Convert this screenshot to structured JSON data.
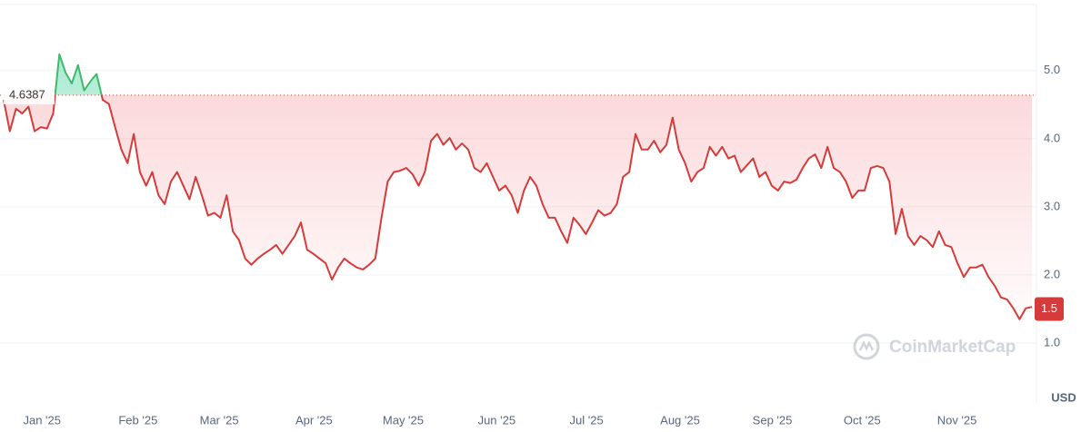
{
  "chart_data": {
    "type": "line",
    "series": [
      {
        "name": "Price",
        "color": "#d63b3b",
        "up_color": "#3fb96a",
        "values": [
          4.57,
          4.11,
          4.44,
          4.37,
          4.47,
          4.11,
          4.17,
          4.15,
          4.37,
          5.24,
          4.97,
          4.81,
          5.08,
          4.71,
          4.84,
          4.95,
          4.57,
          4.51,
          4.17,
          3.84,
          3.64,
          4.07,
          3.51,
          3.31,
          3.51,
          3.17,
          3.04,
          3.37,
          3.51,
          3.31,
          3.11,
          3.44,
          3.17,
          2.87,
          2.91,
          2.84,
          3.17,
          2.64,
          2.51,
          2.24,
          2.15,
          2.24,
          2.31,
          2.37,
          2.44,
          2.31,
          2.44,
          2.57,
          2.77,
          2.37,
          2.31,
          2.24,
          2.17,
          1.93,
          2.11,
          2.24,
          2.17,
          2.11,
          2.08,
          2.15,
          2.24,
          2.84,
          3.37,
          3.51,
          3.53,
          3.57,
          3.48,
          3.31,
          3.51,
          3.97,
          4.07,
          3.91,
          4.01,
          3.84,
          3.93,
          3.84,
          3.57,
          3.51,
          3.64,
          3.44,
          3.24,
          3.31,
          3.17,
          2.91,
          3.24,
          3.44,
          3.31,
          3.04,
          2.84,
          2.84,
          2.64,
          2.47,
          2.84,
          2.73,
          2.6,
          2.77,
          2.95,
          2.87,
          2.91,
          3.04,
          3.44,
          3.51,
          4.07,
          3.84,
          3.84,
          3.97,
          3.8,
          3.91,
          4.31,
          3.84,
          3.64,
          3.37,
          3.51,
          3.57,
          3.88,
          3.75,
          3.88,
          3.71,
          3.75,
          3.51,
          3.61,
          3.71,
          3.44,
          3.51,
          3.31,
          3.24,
          3.37,
          3.35,
          3.4,
          3.57,
          3.71,
          3.77,
          3.57,
          3.88,
          3.57,
          3.51,
          3.37,
          3.13,
          3.24,
          3.24,
          3.57,
          3.6,
          3.57,
          3.37,
          2.6,
          2.97,
          2.57,
          2.44,
          2.57,
          2.51,
          2.41,
          2.64,
          2.44,
          2.41,
          2.17,
          1.97,
          2.11,
          2.11,
          2.15,
          1.97,
          1.84,
          1.67,
          1.64,
          1.51,
          1.35,
          1.51,
          1.53
        ]
      }
    ],
    "xlim": [
      0,
      166
    ],
    "xticks": [
      {
        "value": 6.2,
        "label": "Jan '25"
      },
      {
        "value": 21.7,
        "label": "Feb '25"
      },
      {
        "value": 34.8,
        "label": "Mar '25"
      },
      {
        "value": 50.1,
        "label": "Apr '25"
      },
      {
        "value": 64.5,
        "label": "May '25"
      },
      {
        "value": 79.6,
        "label": "Jun '25"
      },
      {
        "value": 94.1,
        "label": "Jul '25"
      },
      {
        "value": 109.2,
        "label": "Aug '25"
      },
      {
        "value": 124.1,
        "label": "Sep '25"
      },
      {
        "value": 138.6,
        "label": "Oct '25"
      },
      {
        "value": 153.9,
        "label": "Nov '25"
      }
    ],
    "ylim": [
      0.12,
      5.97
    ],
    "yticks": [
      {
        "value": 1,
        "label": "1.0"
      },
      {
        "value": 2,
        "label": "2.0"
      },
      {
        "value": 3,
        "label": "3.0"
      },
      {
        "value": 4,
        "label": "4.0"
      },
      {
        "value": 5,
        "label": "5.0"
      }
    ],
    "grid": true,
    "reference_price": 4.6387,
    "current_price": 1.5,
    "currency": "USD",
    "watermark": "CoinMarketCap"
  }
}
